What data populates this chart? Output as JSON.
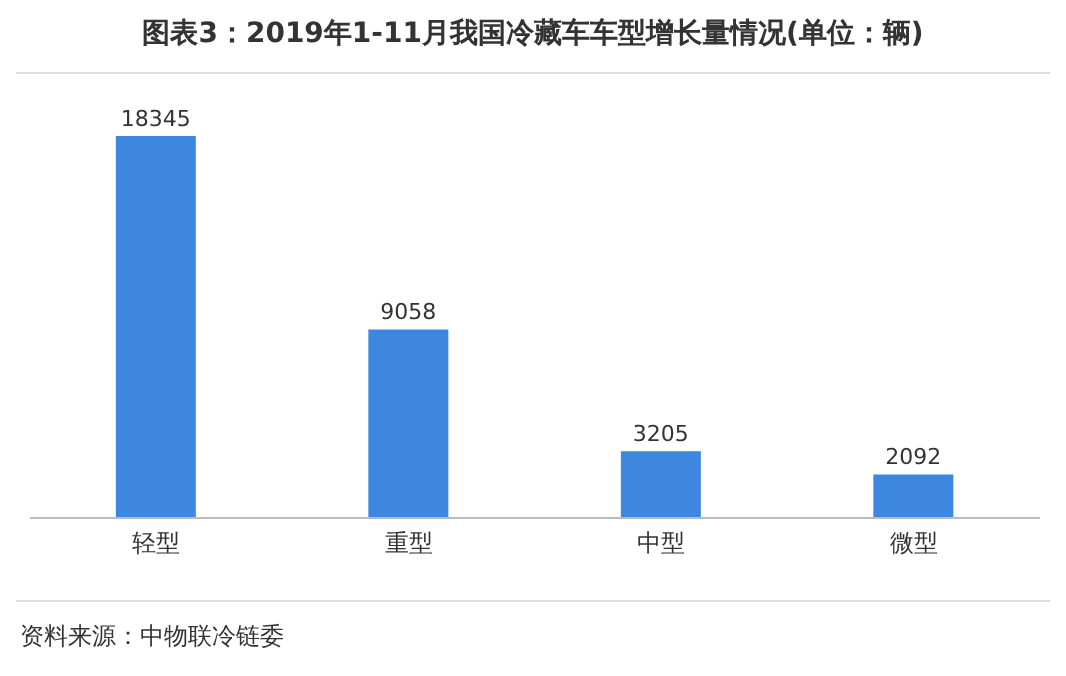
{
  "chart_data": {
    "type": "bar",
    "title": "图表3：2019年1-11月我国冷藏车车型增长量情况(单位：辆)",
    "categories": [
      "轻型",
      "重型",
      "中型",
      "微型"
    ],
    "values": [
      18345,
      9058,
      3205,
      2092
    ],
    "color": "#3d87e0",
    "data_labels": true,
    "annotations": [
      "资料来源：中物联冷链委"
    ]
  }
}
